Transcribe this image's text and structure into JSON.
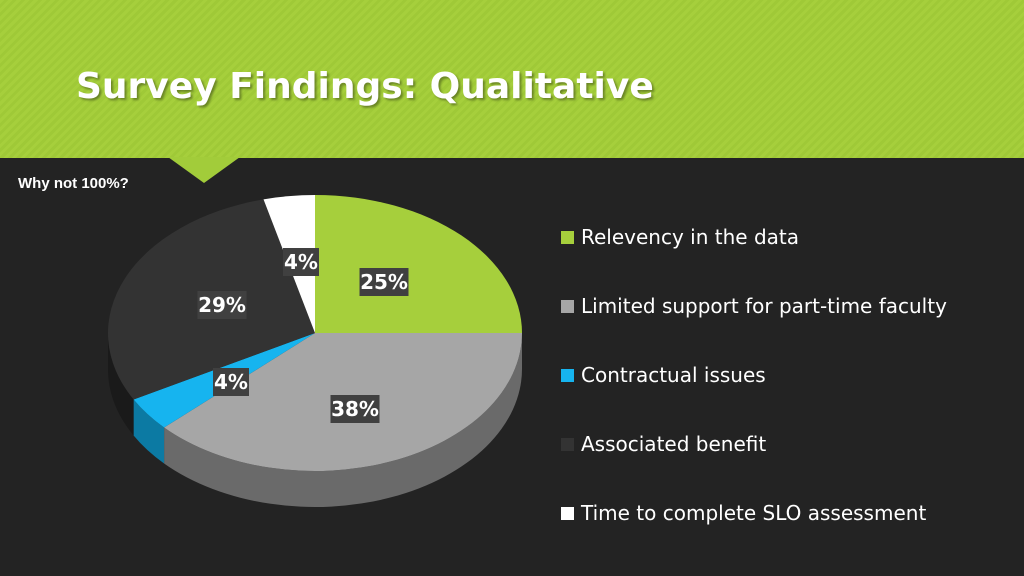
{
  "slide": {
    "title": "Survey Findings: Qualitative",
    "subtitle": "Why not 100%?"
  },
  "colors": {
    "banner": "#a6cf3c",
    "background": "#232323",
    "label_box": "#404040"
  },
  "chart_data": {
    "type": "pie",
    "style": "3d",
    "legend_position": "right",
    "categories": [
      "Relevency in the data",
      "Limited support for part-time faculty",
      "Contractual issues",
      "Associated benefit",
      "Time to complete SLO assessment"
    ],
    "values": [
      25,
      38,
      4,
      29,
      4
    ],
    "data_labels": [
      "25%",
      "38%",
      "4%",
      "29%",
      "4%"
    ],
    "colors": [
      "#a6cf3c",
      "#a6a6a6",
      "#16b4ef",
      "#333333",
      "#ffffff"
    ],
    "side_colors": [
      "#6f8c27",
      "#6a6a6a",
      "#0c7aa3",
      "#1a1a1a",
      "#bdbdbd"
    ],
    "legend_swatch_colors": [
      "#a6cf3c",
      "#a6a6a6",
      "#16b4ef",
      "#333333",
      "#ffffff"
    ]
  }
}
